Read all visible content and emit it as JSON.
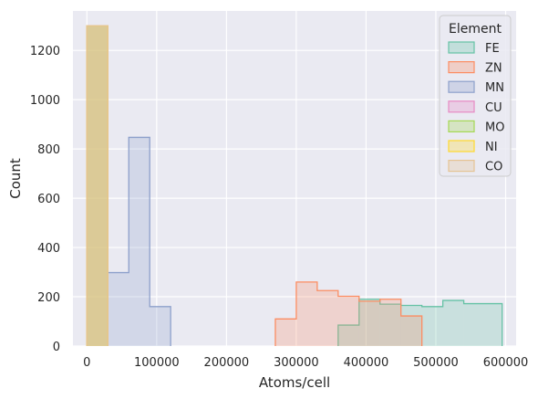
{
  "chart_data": {
    "type": "histogram",
    "title": "",
    "xlabel": "Atoms/cell",
    "ylabel": "Count",
    "xlim": [
      -20000,
      615000
    ],
    "ylim": [
      0,
      1360
    ],
    "x_ticks": [
      0,
      100000,
      200000,
      300000,
      400000,
      500000,
      600000
    ],
    "y_ticks": [
      0,
      200,
      400,
      600,
      800,
      1000,
      1200
    ],
    "grid": true,
    "background": "#eaeaf2",
    "legend": {
      "title": "Element",
      "position": "top-right"
    },
    "series": [
      {
        "name": "FE",
        "color": "#66c2a5",
        "bins": [
          [
            360000,
            390000,
            85
          ],
          [
            390000,
            420000,
            190
          ],
          [
            420000,
            450000,
            170
          ],
          [
            450000,
            480000,
            165
          ],
          [
            480000,
            510000,
            160
          ],
          [
            510000,
            540000,
            185
          ],
          [
            540000,
            595000,
            172
          ]
        ]
      },
      {
        "name": "ZN",
        "color": "#fc8d62",
        "bins": [
          [
            270000,
            300000,
            110
          ],
          [
            300000,
            330000,
            260
          ],
          [
            330000,
            360000,
            225
          ],
          [
            360000,
            390000,
            202
          ],
          [
            390000,
            420000,
            182
          ],
          [
            420000,
            450000,
            190
          ],
          [
            450000,
            480000,
            122
          ]
        ]
      },
      {
        "name": "MN",
        "color": "#8da0cb",
        "bins": [
          [
            0,
            30000,
            1300
          ],
          [
            30000,
            60000,
            298
          ],
          [
            60000,
            90000,
            847
          ],
          [
            90000,
            120000,
            160
          ]
        ]
      },
      {
        "name": "CU",
        "color": "#e78ac3",
        "bins": [
          [
            0,
            30000,
            1300
          ]
        ]
      },
      {
        "name": "MO",
        "color": "#a6d854",
        "bins": [
          [
            0,
            30000,
            1300
          ]
        ]
      },
      {
        "name": "NI",
        "color": "#ffd92f",
        "bins": [
          [
            0,
            30000,
            1300
          ]
        ]
      },
      {
        "name": "CO",
        "color": "#e5c494",
        "bins": [
          [
            0,
            30000,
            1300
          ]
        ]
      }
    ]
  }
}
